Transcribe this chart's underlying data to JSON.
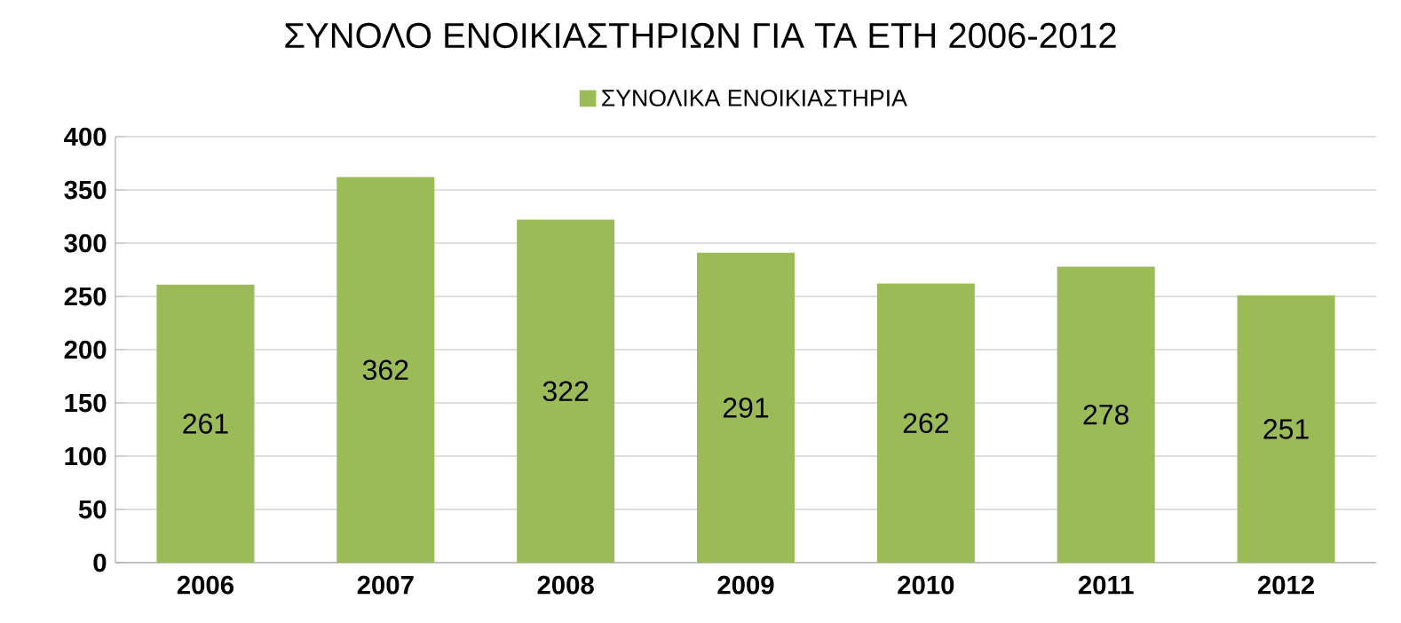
{
  "chart_data": {
    "type": "bar",
    "title": "ΣΥΝΟΛΟ ΕΝΟΙΚΙΑΣΤΗΡΙΩΝ ΓΙΑ ΤΑ ΕΤΗ 2006-2012",
    "categories": [
      "2006",
      "2007",
      "2008",
      "2009",
      "2010",
      "2011",
      "2012"
    ],
    "series": [
      {
        "name": "ΣΥΝΟΛΙΚΑ ΕΝΟΙΚΙΑΣΤΗΡΙΑ",
        "color": "#9bbb59",
        "values": [
          261,
          362,
          322,
          291,
          262,
          278,
          251
        ]
      }
    ],
    "ylim": [
      0,
      400
    ],
    "yticks": [
      0,
      50,
      100,
      150,
      200,
      250,
      300,
      350,
      400
    ],
    "grid": "y",
    "legend": "top",
    "data_labels": true
  }
}
